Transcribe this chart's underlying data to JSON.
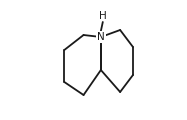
{
  "background_color": "#ffffff",
  "line_color": "#1a1a1a",
  "line_width": 1.3,
  "N_label": "N",
  "H_label": "H",
  "label_fontsize": 7.5,
  "label_color": "#1a1a1a",
  "figsize": [
    1.87,
    1.2
  ],
  "dpi": 100
}
